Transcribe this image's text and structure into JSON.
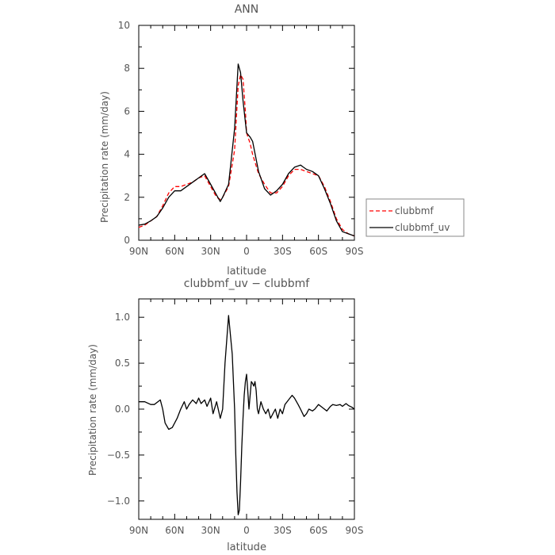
{
  "chart_data": [
    {
      "type": "line",
      "title": "ANN",
      "xlabel": "latitude",
      "ylabel": "Precipitation rate (mm/day)",
      "xlim": [
        90,
        -90
      ],
      "ylim": [
        0,
        10
      ],
      "x_ticks": [
        90,
        60,
        30,
        0,
        -30,
        -60,
        -90
      ],
      "x_tick_labels": [
        "90N",
        "60N",
        "30N",
        "0",
        "30S",
        "60S",
        "90S"
      ],
      "y_ticks": [
        0,
        2,
        4,
        6,
        8,
        10
      ],
      "y_tick_labels": [
        "0",
        "2",
        "4",
        "6",
        "8",
        "10"
      ],
      "grid": false,
      "legend_position": "right",
      "series": [
        {
          "name": "clubbmf",
          "color": "#ff0000",
          "dash": "dashed",
          "x": [
            90,
            85,
            80,
            75,
            70,
            65,
            60,
            55,
            50,
            45,
            40,
            35,
            30,
            25,
            22,
            20,
            15,
            10,
            7,
            5,
            3,
            1,
            0,
            -3,
            -5,
            -10,
            -15,
            -20,
            -25,
            -30,
            -35,
            -40,
            -45,
            -50,
            -55,
            -60,
            -65,
            -70,
            -75,
            -80,
            -85,
            -90
          ],
          "y": [
            0.6,
            0.7,
            0.9,
            1.1,
            1.6,
            2.2,
            2.5,
            2.5,
            2.6,
            2.7,
            2.9,
            3.0,
            2.5,
            2.0,
            1.9,
            2.0,
            2.5,
            4.2,
            7.2,
            7.7,
            7.5,
            6.0,
            5.0,
            4.5,
            4.0,
            3.1,
            2.6,
            2.2,
            2.2,
            2.5,
            3.0,
            3.3,
            3.3,
            3.2,
            3.1,
            3.0,
            2.5,
            1.8,
            1.0,
            0.5,
            0.3,
            0.2
          ]
        },
        {
          "name": "clubbmf_uv",
          "color": "#000000",
          "dash": "solid",
          "x": [
            90,
            85,
            80,
            75,
            70,
            65,
            60,
            55,
            50,
            45,
            40,
            35,
            30,
            25,
            22,
            20,
            15,
            10,
            7,
            5,
            3,
            1,
            0,
            -3,
            -5,
            -10,
            -15,
            -20,
            -25,
            -30,
            -35,
            -40,
            -45,
            -50,
            -55,
            -60,
            -65,
            -70,
            -75,
            -80,
            -85,
            -90
          ],
          "y": [
            0.7,
            0.75,
            0.9,
            1.1,
            1.5,
            2.0,
            2.3,
            2.3,
            2.5,
            2.7,
            2.9,
            3.1,
            2.6,
            2.1,
            1.8,
            2.0,
            2.6,
            5.2,
            8.2,
            7.8,
            6.5,
            5.5,
            5.0,
            4.8,
            4.6,
            3.2,
            2.4,
            2.1,
            2.3,
            2.6,
            3.1,
            3.4,
            3.5,
            3.3,
            3.2,
            3.0,
            2.4,
            1.7,
            0.9,
            0.4,
            0.3,
            0.2
          ]
        }
      ]
    },
    {
      "type": "line",
      "title": "clubbmf_uv − clubbmf",
      "xlabel": "latitude",
      "ylabel": "Precipitation rate (mm/day)",
      "xlim": [
        90,
        -90
      ],
      "ylim": [
        -1.2,
        1.2
      ],
      "x_ticks": [
        90,
        60,
        30,
        0,
        -30,
        -60,
        -90
      ],
      "x_tick_labels": [
        "90N",
        "60N",
        "30N",
        "0",
        "30S",
        "60S",
        "90S"
      ],
      "y_ticks": [
        1.0,
        0.5,
        0.0,
        -0.5,
        -1.0
      ],
      "y_tick_labels": [
        "1.0",
        "0.5",
        "0.0",
        "−0.5",
        "−1.0"
      ],
      "grid": false,
      "series": [
        {
          "color": "#000000",
          "dash": "solid",
          "x": [
            90,
            85,
            80,
            77,
            72,
            70,
            68,
            65,
            62,
            58,
            55,
            52,
            50,
            48,
            45,
            42,
            40,
            38,
            35,
            33,
            30,
            28,
            25,
            22,
            20,
            18,
            15,
            12,
            10,
            9,
            8,
            7,
            6,
            5,
            4,
            3,
            2,
            1,
            0,
            -1,
            -2,
            -3,
            -4,
            -5,
            -6,
            -7,
            -8,
            -9,
            -10,
            -12,
            -14,
            -16,
            -18,
            -20,
            -22,
            -24,
            -26,
            -28,
            -30,
            -32,
            -35,
            -38,
            -40,
            -43,
            -45,
            -48,
            -50,
            -52,
            -55,
            -57,
            -60,
            -62,
            -65,
            -67,
            -70,
            -72,
            -75,
            -78,
            -80,
            -83,
            -85,
            -88,
            -90
          ],
          "y": [
            0.08,
            0.08,
            0.05,
            0.05,
            0.1,
            0.0,
            -0.15,
            -0.22,
            -0.2,
            -0.1,
            0.0,
            0.08,
            0.0,
            0.05,
            0.1,
            0.06,
            0.12,
            0.06,
            0.1,
            0.03,
            0.12,
            -0.05,
            0.08,
            -0.1,
            0.0,
            0.5,
            1.02,
            0.6,
            0.0,
            -0.5,
            -0.9,
            -1.15,
            -1.1,
            -0.8,
            -0.4,
            -0.1,
            0.15,
            0.3,
            0.38,
            0.2,
            0.0,
            0.15,
            0.3,
            0.28,
            0.25,
            0.3,
            0.2,
            0.0,
            -0.05,
            0.08,
            0.0,
            -0.05,
            0.0,
            -0.1,
            -0.05,
            0.0,
            -0.1,
            0.0,
            -0.05,
            0.05,
            0.1,
            0.15,
            0.12,
            0.05,
            0.0,
            -0.08,
            -0.05,
            0.0,
            -0.02,
            0.0,
            0.05,
            0.03,
            0.0,
            -0.02,
            0.03,
            0.05,
            0.04,
            0.05,
            0.03,
            0.06,
            0.04,
            0.02,
            0.0
          ]
        }
      ]
    }
  ]
}
